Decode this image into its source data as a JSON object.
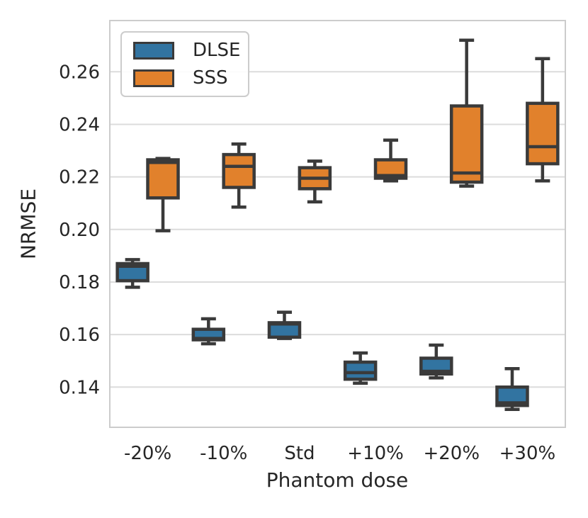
{
  "figure": {
    "title": "",
    "ylabel": "NRMSE",
    "xlabel": "Phantom dose",
    "legend": [
      {
        "label": "DLSE",
        "color": "#3274a1"
      },
      {
        "label": "SSS",
        "color": "#e1812c"
      }
    ]
  },
  "colors": {
    "grid": "#dcdcdc",
    "spine": "#cccccc",
    "box_edge": "#3a3a3a",
    "text": "#262626",
    "background": "#ffffff"
  },
  "chart_data": {
    "type": "boxplot",
    "title": "",
    "xlabel": "Phantom dose",
    "ylabel": "NRMSE",
    "categories": [
      "-20%",
      "-10%",
      "Std",
      "+10%",
      "+20%",
      "+30%"
    ],
    "yticks": [
      0.14,
      0.16,
      0.18,
      0.2,
      0.22,
      0.24,
      0.26
    ],
    "ylim": [
      0.1247,
      0.2795
    ],
    "grid": true,
    "legend_position": "upper left",
    "series": [
      {
        "name": "DLSE",
        "color": "#3274a1",
        "boxes": [
          {
            "whislo": 0.178,
            "q1": 0.1805,
            "med": 0.186,
            "q3": 0.187,
            "whishi": 0.1885
          },
          {
            "whislo": 0.1565,
            "q1": 0.158,
            "med": 0.1585,
            "q3": 0.162,
            "whishi": 0.166
          },
          {
            "whislo": 0.1585,
            "q1": 0.159,
            "med": 0.164,
            "q3": 0.1645,
            "whishi": 0.1685
          },
          {
            "whislo": 0.1415,
            "q1": 0.143,
            "med": 0.1455,
            "q3": 0.1495,
            "whishi": 0.153
          },
          {
            "whislo": 0.1435,
            "q1": 0.145,
            "med": 0.146,
            "q3": 0.151,
            "whishi": 0.156
          },
          {
            "whislo": 0.1315,
            "q1": 0.133,
            "med": 0.134,
            "q3": 0.14,
            "whishi": 0.147
          }
        ]
      },
      {
        "name": "SSS",
        "color": "#e1812c",
        "boxes": [
          {
            "whislo": 0.1995,
            "q1": 0.212,
            "med": 0.2255,
            "q3": 0.2265,
            "whishi": 0.227
          },
          {
            "whislo": 0.2085,
            "q1": 0.216,
            "med": 0.224,
            "q3": 0.2285,
            "whishi": 0.2325
          },
          {
            "whislo": 0.2105,
            "q1": 0.2155,
            "med": 0.2195,
            "q3": 0.2235,
            "whishi": 0.226
          },
          {
            "whislo": 0.2185,
            "q1": 0.2195,
            "med": 0.2205,
            "q3": 0.2265,
            "whishi": 0.234
          },
          {
            "whislo": 0.2165,
            "q1": 0.218,
            "med": 0.2215,
            "q3": 0.247,
            "whishi": 0.272
          },
          {
            "whislo": 0.2185,
            "q1": 0.225,
            "med": 0.2315,
            "q3": 0.248,
            "whishi": 0.265
          }
        ]
      }
    ]
  }
}
